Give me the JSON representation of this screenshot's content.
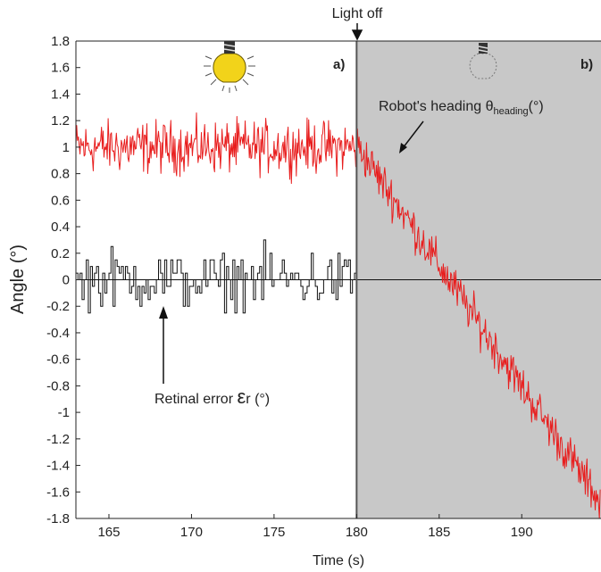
{
  "chart_data": {
    "type": "line",
    "xlabel": "Time (s)",
    "ylabel": "Angle (°)",
    "xlim": [
      163,
      194.8
    ],
    "ylim": [
      -1.8,
      1.8
    ],
    "xticks": [
      165,
      170,
      175,
      180,
      185,
      190
    ],
    "yticks": [
      1.8,
      1.6,
      1.4,
      1.2,
      1,
      0.8,
      0.6,
      0.4,
      0.2,
      0,
      -0.2,
      -0.4,
      -0.6,
      -0.8,
      -1,
      -1.2,
      -1.4,
      -1.6,
      -1.8
    ],
    "grid": false,
    "series": [
      {
        "key": "heading",
        "color": "#e81e1e",
        "segments": [
          {
            "x_start": 163,
            "x_end": 180,
            "mean": 1.0,
            "noise": 0.17,
            "slope": 0
          },
          {
            "x_start": 180,
            "x_end": 194.8,
            "start_value": 1.02,
            "end_value": -1.68,
            "noise": 0.13
          }
        ]
      },
      {
        "key": "retinal_error",
        "color": "#111111",
        "step_duration": 0.125,
        "segments": [
          {
            "x_start": 163,
            "x_end": 180,
            "mean": 0.0,
            "noise": 0.2
          },
          {
            "x_start": 180,
            "x_end": 194.8,
            "mean": 0.0,
            "noise": 0.0
          }
        ]
      }
    ],
    "shaded_region": {
      "x_start": 180,
      "x_end": 194.8,
      "color": "#c8c8c8"
    },
    "event_label": "Light off",
    "event_x": 180,
    "panel_labels": [
      "a)",
      "b)"
    ],
    "annotations": [
      {
        "key": "heading",
        "text_main": "Robot's heading θ",
        "text_sub": "heading",
        "text_end": "(°)",
        "target": [
          182.4,
          0.95
        ]
      },
      {
        "key": "retinal_error",
        "text_main": "Retinal error ",
        "symbol": "ε",
        "symbol_sub": "r",
        "text_end": " (°)",
        "target": [
          168.1,
          -0.25
        ]
      }
    ],
    "icons": [
      "bulb-lit-icon",
      "bulb-off-icon"
    ]
  }
}
